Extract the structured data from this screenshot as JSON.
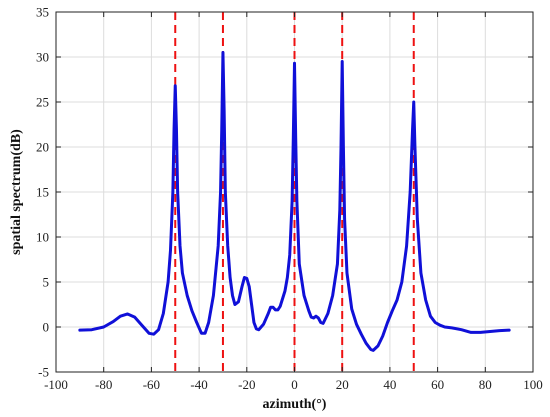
{
  "chart_data": {
    "type": "line",
    "title": "",
    "xlabel": "azimuth(°)",
    "ylabel": "spatial spectrum(dB)",
    "xlim": [
      -100,
      100
    ],
    "ylim": [
      -5,
      35
    ],
    "xticks": [
      -100,
      -80,
      -60,
      -40,
      -20,
      0,
      20,
      40,
      60,
      80,
      100
    ],
    "yticks": [
      -5,
      0,
      5,
      10,
      15,
      20,
      25,
      30,
      35
    ],
    "grid": true,
    "colors": {
      "curve": "#1010d8",
      "markers": "#ee1111",
      "grid": "#dcdcdc",
      "axis": "#222222"
    },
    "markers": {
      "style": "dashed-vertical",
      "x": [
        -50,
        -30,
        0,
        20,
        50
      ]
    },
    "series": [
      {
        "color": "#1010d8",
        "points": [
          [
            -90,
            -0.35
          ],
          [
            -85,
            -0.3
          ],
          [
            -80,
            0.0
          ],
          [
            -76,
            0.6
          ],
          [
            -73,
            1.2
          ],
          [
            -70,
            1.45
          ],
          [
            -67,
            1.1
          ],
          [
            -64,
            0.2
          ],
          [
            -61,
            -0.7
          ],
          [
            -59,
            -0.8
          ],
          [
            -57,
            -0.3
          ],
          [
            -55,
            1.5
          ],
          [
            -53,
            5.0
          ],
          [
            -52,
            8.5
          ],
          [
            -51,
            15.0
          ],
          [
            -50.5,
            22.0
          ],
          [
            -50,
            26.8
          ],
          [
            -49.5,
            22.0
          ],
          [
            -49,
            15.0
          ],
          [
            -48,
            9.0
          ],
          [
            -47,
            6.0
          ],
          [
            -45,
            3.5
          ],
          [
            -43,
            1.8
          ],
          [
            -41,
            0.5
          ],
          [
            -39,
            -0.7
          ],
          [
            -37.5,
            -0.7
          ],
          [
            -36,
            0.5
          ],
          [
            -34,
            3.5
          ],
          [
            -32,
            9.0
          ],
          [
            -31,
            15.0
          ],
          [
            -30.5,
            22.0
          ],
          [
            -30,
            30.5
          ],
          [
            -29.5,
            24.0
          ],
          [
            -29,
            15.0
          ],
          [
            -28,
            9.0
          ],
          [
            -27,
            5.5
          ],
          [
            -26,
            3.5
          ],
          [
            -25,
            2.5
          ],
          [
            -23.5,
            2.8
          ],
          [
            -22,
            4.5
          ],
          [
            -21,
            5.5
          ],
          [
            -20,
            5.4
          ],
          [
            -19,
            4.5
          ],
          [
            -18,
            2.5
          ],
          [
            -17,
            0.5
          ],
          [
            -16,
            -0.2
          ],
          [
            -15,
            -0.3
          ],
          [
            -13,
            0.3
          ],
          [
            -11,
            1.5
          ],
          [
            -10,
            2.2
          ],
          [
            -9,
            2.2
          ],
          [
            -8,
            1.9
          ],
          [
            -7,
            1.9
          ],
          [
            -6,
            2.3
          ],
          [
            -4,
            4.0
          ],
          [
            -3,
            5.5
          ],
          [
            -2,
            8.0
          ],
          [
            -1,
            14.0
          ],
          [
            -0.5,
            21.0
          ],
          [
            0,
            29.3
          ],
          [
            0.5,
            21.0
          ],
          [
            1,
            14.0
          ],
          [
            2,
            7.0
          ],
          [
            4,
            3.5
          ],
          [
            6,
            1.8
          ],
          [
            7,
            1.1
          ],
          [
            8,
            1.0
          ],
          [
            9,
            1.2
          ],
          [
            10,
            1.0
          ],
          [
            11,
            0.5
          ],
          [
            12,
            0.4
          ],
          [
            14,
            1.5
          ],
          [
            16,
            3.5
          ],
          [
            18,
            7.0
          ],
          [
            19,
            13.0
          ],
          [
            19.5,
            20.0
          ],
          [
            20,
            29.5
          ],
          [
            20.5,
            20.0
          ],
          [
            21,
            12.0
          ],
          [
            22,
            6.0
          ],
          [
            24,
            2.0
          ],
          [
            26,
            0.3
          ],
          [
            28,
            -0.8
          ],
          [
            30,
            -1.8
          ],
          [
            32,
            -2.5
          ],
          [
            33,
            -2.6
          ],
          [
            35,
            -2.1
          ],
          [
            37,
            -1.0
          ],
          [
            39,
            0.5
          ],
          [
            41,
            1.8
          ],
          [
            43,
            3.0
          ],
          [
            45,
            5.0
          ],
          [
            47,
            9.0
          ],
          [
            48.5,
            15.0
          ],
          [
            49.5,
            22.0
          ],
          [
            50,
            25.0
          ],
          [
            50.5,
            20.0
          ],
          [
            51.5,
            12.0
          ],
          [
            53,
            6.0
          ],
          [
            55,
            3.0
          ],
          [
            57,
            1.2
          ],
          [
            59,
            0.5
          ],
          [
            61,
            0.2
          ],
          [
            63,
            0.0
          ],
          [
            66,
            -0.1
          ],
          [
            70,
            -0.3
          ],
          [
            74,
            -0.6
          ],
          [
            78,
            -0.6
          ],
          [
            82,
            -0.5
          ],
          [
            86,
            -0.4
          ],
          [
            90,
            -0.35
          ]
        ]
      }
    ]
  }
}
